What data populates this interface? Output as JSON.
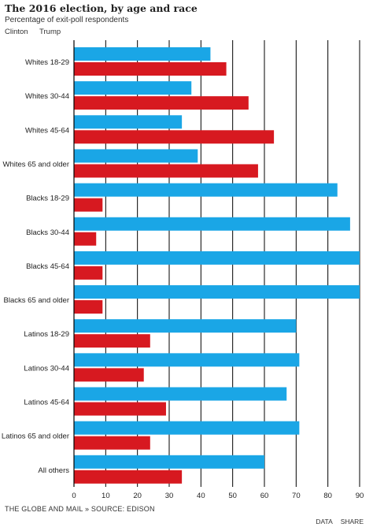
{
  "chart_data": {
    "type": "bar",
    "orientation": "horizontal",
    "title": "The 2016 election, by age and race",
    "subtitle": "Percentage of exit-poll respondents",
    "categories": [
      "Whites 18-29",
      "Whites 30-44",
      "Whites 45-64",
      "Whites 65 and older",
      "Blacks 18-29",
      "Blacks 30-44",
      "Blacks 45-64",
      "Blacks 65 and older",
      "Latinos 18-29",
      "Latinos 30-44",
      "Latinos 45-64",
      "Latinos 65 and older",
      "All others"
    ],
    "series": [
      {
        "name": "Clinton",
        "color": "#1aa6e6",
        "values": [
          43,
          37,
          34,
          39,
          83,
          87,
          90,
          90,
          70,
          71,
          67,
          71,
          60
        ]
      },
      {
        "name": "Trump",
        "color": "#d71920",
        "values": [
          48,
          55,
          63,
          58,
          9,
          7,
          9,
          9,
          24,
          22,
          29,
          24,
          34
        ]
      }
    ],
    "xlim": [
      0,
      90
    ],
    "xticks": [
      0,
      10,
      20,
      30,
      40,
      50,
      60,
      70,
      80,
      90
    ],
    "grid": true,
    "legend": "top-left"
  },
  "source": "THE GLOBE AND MAIL » SOURCE: EDISON",
  "footer": {
    "data_label": "DATA",
    "share_label": "SHARE"
  }
}
